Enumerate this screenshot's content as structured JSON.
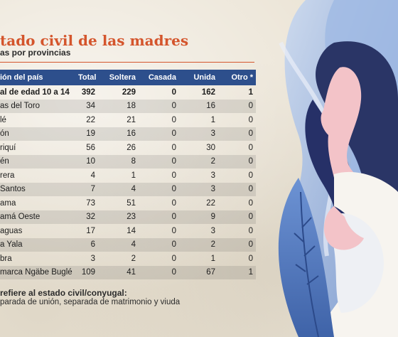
{
  "title": "tado civil de las madres",
  "subtitle": "as por provincias",
  "table": {
    "headers": [
      "ión del país",
      "Total",
      "Soltera",
      "Casada",
      "Unida",
      "Otro *"
    ],
    "rows": [
      [
        "al de edad 10 a 14",
        "392",
        "229",
        "0",
        "162",
        "1"
      ],
      [
        "as del Toro",
        "34",
        "18",
        "0",
        "16",
        "0"
      ],
      [
        "lé",
        "22",
        "21",
        "0",
        "1",
        "0"
      ],
      [
        "ón",
        "19",
        "16",
        "0",
        "3",
        "0"
      ],
      [
        "riquí",
        "56",
        "26",
        "0",
        "30",
        "0"
      ],
      [
        "én",
        "10",
        "8",
        "0",
        "2",
        "0"
      ],
      [
        "rera",
        "4",
        "1",
        "0",
        "3",
        "0"
      ],
      [
        "Santos",
        "7",
        "4",
        "0",
        "3",
        "0"
      ],
      [
        "ama",
        "73",
        "51",
        "0",
        "22",
        "0"
      ],
      [
        "amá Oeste",
        "32",
        "23",
        "0",
        "9",
        "0"
      ],
      [
        "aguas",
        "17",
        "14",
        "0",
        "3",
        "0"
      ],
      [
        "a Yala",
        "6",
        "4",
        "0",
        "2",
        "0"
      ],
      [
        "bra",
        "3",
        "2",
        "0",
        "1",
        "0"
      ],
      [
        "marca Ngäbe Buglé",
        "109",
        "41",
        "0",
        "67",
        "1"
      ]
    ]
  },
  "footnote": {
    "title": "refiere al estado civil/conyugal:",
    "text": "parada de unión, separada de matrimonio y viuda"
  },
  "colors": {
    "title": "#d4552c",
    "header_bg": "#2d4f8c",
    "illustration_blue": "#5a7ec0",
    "illustration_dark": "#2a3566",
    "skin": "#f3c3c8"
  }
}
